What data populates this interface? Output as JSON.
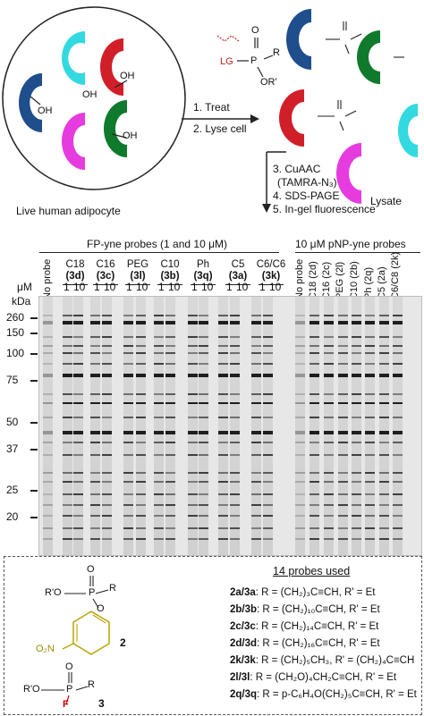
{
  "top": {
    "cell_label": "Live human adipocyte",
    "oh": "OH",
    "probe_lg": "LG",
    "probe_p": "P",
    "probe_o": "O",
    "probe_r": "R",
    "probe_or": "OR'",
    "probe_o_prime": "O",
    "step1": "1. Treat",
    "step2": "2. Lyse cell",
    "steps_lower": [
      "3. CuAAC",
      "(TAMRA-N₃)",
      "4. SDS-PAGE",
      "5. In-gel fluorescence"
    ],
    "lysate": "Lysate",
    "colors": {
      "cyan": "#33d9e0",
      "red": "#d11f2a",
      "navy": "#1e4e8c",
      "magenta": "#e63cdf",
      "green": "#0f7a2c"
    }
  },
  "gel": {
    "header_left": "FP-yne probes (1 and 10 μM)",
    "header_right": "10 μM pNP-yne probes",
    "no_probe": "No probe",
    "groups_left": [
      {
        "name": "C18",
        "id": "(3d)"
      },
      {
        "name": "C16",
        "id": "(3c)"
      },
      {
        "name": "PEG",
        "id": "(3l)"
      },
      {
        "name": "C10",
        "id": "(3b)"
      },
      {
        "name": "Ph",
        "id": "(3q)"
      },
      {
        "name": "C5",
        "id": "(3a)"
      },
      {
        "name": "C6/C6",
        "id": "(3k)"
      }
    ],
    "conc_unit": "μM",
    "conc": [
      "1",
      "10"
    ],
    "kda": "kDa",
    "markers": [
      "260",
      "150",
      "100",
      "75",
      "50",
      "37",
      "25",
      "20"
    ],
    "right_lanes": [
      "No probe",
      "C18 (2d)",
      "C16 (2c)",
      "PEG (2l)",
      "C10 (2b)",
      "Ph (2q)",
      "C5 (2a)",
      "C6/C8 (2k)"
    ]
  },
  "legend": {
    "title": "14 probes used",
    "compound2": "2",
    "compound3": "3",
    "atoms": {
      "O": "O",
      "P": "P",
      "R": "R",
      "RO": "R'O",
      "O2N": "O₂N",
      "F": "F"
    },
    "probes": [
      {
        "id": "2a/3a",
        "text": ": R = (CH₂)₃C≡CH, R' = Et"
      },
      {
        "id": "2b/3b",
        "text": ": R = (CH₂)₁₀C≡CH, R' = Et"
      },
      {
        "id": "2c/3c",
        "text": ": R = (CH₂)₁₄C≡CH, R' = Et"
      },
      {
        "id": "2d/3d",
        "text": ": R = (CH₂)₁₆C≡CH, R' = Et"
      },
      {
        "id": "2k/3k",
        "text": ": R = (CH₂)₅CH₃, R' = (CH₂)₄C≡CH"
      },
      {
        "id": "2l/3l",
        "text": ": R = (CH₂O)₄CH₂C≡CH, R' = Et"
      },
      {
        "id": "2q/3q",
        "text": ": R = p-C₆H₄O(CH₂)₅C≡CH, R' = Et"
      }
    ]
  }
}
